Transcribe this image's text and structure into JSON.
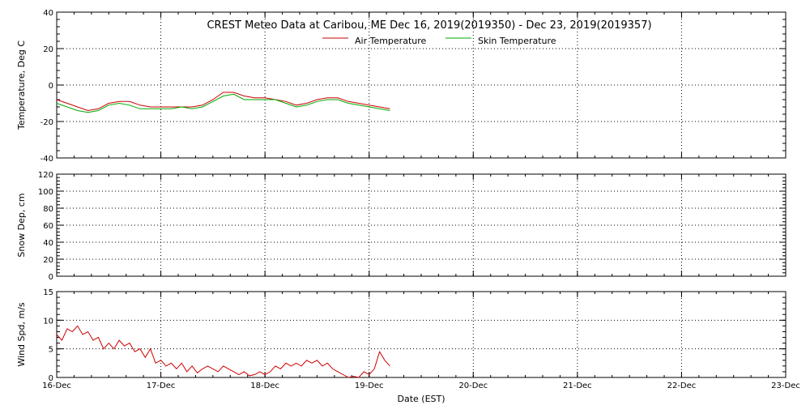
{
  "chart_data": {
    "title": "CREST Meteo Data at Caribou, ME   Dec 16, 2019(2019350) - Dec 23, 2019(2019357)",
    "xlabel": "Date (EST)",
    "x_ticks": [
      "16-Dec",
      "17-Dec",
      "18-Dec",
      "19-Dec",
      "20-Dec",
      "21-Dec",
      "22-Dec",
      "23-Dec"
    ],
    "xlim": [
      0,
      7
    ],
    "panels": [
      {
        "type": "line",
        "ylabel": "Temperature, Deg C",
        "ylim": [
          -40,
          40
        ],
        "yticks": [
          40,
          20,
          0,
          -20,
          -40
        ],
        "legend": "top-center",
        "series": [
          {
            "name": "Air Temperature",
            "color": "#cc0000",
            "x": [
              0,
              0.1,
              0.2,
              0.3,
              0.4,
              0.5,
              0.6,
              0.7,
              0.8,
              0.9,
              1.0,
              1.1,
              1.2,
              1.3,
              1.4,
              1.5,
              1.6,
              1.7,
              1.8,
              1.9,
              2.0,
              2.1,
              2.2,
              2.3,
              2.4,
              2.5,
              2.6,
              2.7,
              2.8,
              2.9,
              3.0,
              3.1,
              3.2
            ],
            "values": [
              -8,
              -10,
              -12,
              -14,
              -13,
              -10,
              -9,
              -9,
              -11,
              -12,
              -12,
              -12,
              -12,
              -12,
              -11,
              -8,
              -4,
              -4,
              -6,
              -7,
              -7,
              -8,
              -9,
              -11,
              -10,
              -8,
              -7,
              -7,
              -9,
              -10,
              -11,
              -12,
              -13
            ]
          },
          {
            "name": "Skin Temperature",
            "color": "#00aa00",
            "x": [
              0,
              0.1,
              0.2,
              0.3,
              0.4,
              0.5,
              0.6,
              0.7,
              0.8,
              0.9,
              1.0,
              1.1,
              1.2,
              1.3,
              1.4,
              1.5,
              1.6,
              1.7,
              1.8,
              1.9,
              2.0,
              2.1,
              2.2,
              2.3,
              2.4,
              2.5,
              2.6,
              2.7,
              2.8,
              2.9,
              3.0,
              3.1,
              3.2
            ],
            "values": [
              -10,
              -12,
              -14,
              -15,
              -14,
              -11,
              -10,
              -11,
              -13,
              -13,
              -13,
              -13,
              -12,
              -13,
              -12,
              -9,
              -6,
              -5,
              -8,
              -8,
              -8,
              -8,
              -10,
              -12,
              -11,
              -9,
              -8,
              -8,
              -10,
              -11,
              -12,
              -13,
              -14
            ]
          }
        ]
      },
      {
        "type": "line",
        "ylabel": "Snow Dep, cm",
        "ylim": [
          0,
          120
        ],
        "yticks": [
          120,
          100,
          80,
          60,
          40,
          20,
          0
        ],
        "series": []
      },
      {
        "type": "line",
        "ylabel": "Wind Spd, m/s",
        "ylim": [
          0,
          15
        ],
        "yticks": [
          15,
          10,
          5,
          0
        ],
        "series": [
          {
            "name": "",
            "color": "#cc0000",
            "x": [
              0,
              0.05,
              0.1,
              0.15,
              0.2,
              0.25,
              0.3,
              0.35,
              0.4,
              0.45,
              0.5,
              0.55,
              0.6,
              0.65,
              0.7,
              0.75,
              0.8,
              0.85,
              0.9,
              0.95,
              1.0,
              1.05,
              1.1,
              1.15,
              1.2,
              1.25,
              1.3,
              1.35,
              1.4,
              1.45,
              1.5,
              1.55,
              1.6,
              1.65,
              1.7,
              1.75,
              1.8,
              1.85,
              1.9,
              1.95,
              2.0,
              2.05,
              2.1,
              2.15,
              2.2,
              2.25,
              2.3,
              2.35,
              2.4,
              2.45,
              2.5,
              2.55,
              2.6,
              2.65,
              2.7,
              2.75,
              2.8,
              2.85,
              2.9,
              2.95,
              3.0,
              3.05,
              3.1,
              3.15,
              3.2
            ],
            "values": [
              7.5,
              6.5,
              8.5,
              8.0,
              9.0,
              7.5,
              8.0,
              6.5,
              7.0,
              5.0,
              6.0,
              5.0,
              6.5,
              5.5,
              6.0,
              4.5,
              5.0,
              3.5,
              5.0,
              2.5,
              3.0,
              2.0,
              2.5,
              1.5,
              2.5,
              1.0,
              2.0,
              0.8,
              1.5,
              2.0,
              1.5,
              1.0,
              2.0,
              1.5,
              1.0,
              0.5,
              1.0,
              0.3,
              0.5,
              1.0,
              0.5,
              1.0,
              2.0,
              1.5,
              2.5,
              2.0,
              2.5,
              2.0,
              3.0,
              2.5,
              3.0,
              2.0,
              2.5,
              1.5,
              1.0,
              0.5,
              0.0,
              0.2,
              0.0,
              1.0,
              0.5,
              1.5,
              4.5,
              3.0,
              2.0
            ]
          }
        ]
      }
    ]
  }
}
